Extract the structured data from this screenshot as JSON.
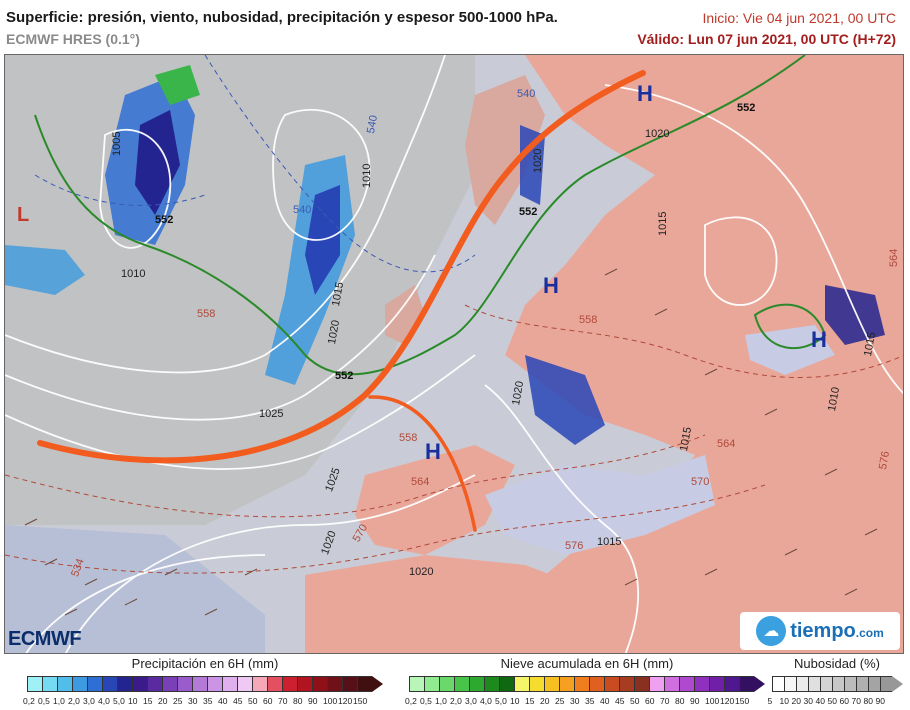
{
  "header": {
    "title": "Superficie: presión, viento, nubosidad, precipitación y espesor 500-1000 hPa.",
    "model": "ECMWF HRES (0.1°)",
    "init": "Inicio: Vie 04 jun 2021, 00 UTC",
    "valid": "Válido: Lun 07 jun 2021, 00 UTC (H+72)"
  },
  "map": {
    "pressure_centers": [
      {
        "label": "H",
        "color": "#1a2f9e"
      },
      {
        "label": "H",
        "color": "#1a2f9e"
      },
      {
        "label": "H",
        "color": "#1a2f9e"
      },
      {
        "label": "H",
        "color": "#1a2f9e"
      },
      {
        "label": "L",
        "color": "#c0392b"
      }
    ],
    "isobar_labels": [
      "1005",
      "1010",
      "1010",
      "1015",
      "1020",
      "1025",
      "1025",
      "1020",
      "1020",
      "1020",
      "1015",
      "1015",
      "1020",
      "1015",
      "1020",
      "1010",
      "1015"
    ],
    "thickness_labels": [
      "552",
      "552",
      "552",
      "552",
      "540",
      "540",
      "540",
      "558",
      "558",
      "558",
      "564",
      "564",
      "570",
      "570",
      "576",
      "576",
      "534",
      "564"
    ]
  },
  "legends": {
    "precipitation": {
      "title": "Precipitación en 6H (mm)",
      "ticks": [
        "0,2",
        "0,5",
        "1,0",
        "2,0",
        "3,0",
        "4,0",
        "5,0",
        "10",
        "15",
        "20",
        "25",
        "30",
        "35",
        "40",
        "45",
        "50",
        "60",
        "70",
        "80",
        "90",
        "100",
        "120",
        "150"
      ],
      "colors": [
        "#9ff0f7",
        "#74dbf3",
        "#53bde9",
        "#3d9ae0",
        "#2f6ed4",
        "#2946b7",
        "#23248f",
        "#3b1a8a",
        "#5a2aa0",
        "#7a40b8",
        "#9a5ccc",
        "#b47ad8",
        "#cc94e4",
        "#e0b0ee",
        "#f0c8f4",
        "#f6a8b8",
        "#e45060",
        "#cc2030",
        "#b01420",
        "#901018",
        "#701018",
        "#581018",
        "#401010"
      ]
    },
    "snow": {
      "title": "Nieve acumulada en 6H (mm)",
      "ticks": [
        "0,2",
        "0,5",
        "1,0",
        "2,0",
        "3,0",
        "4,0",
        "5,0",
        "10",
        "15",
        "20",
        "25",
        "30",
        "35",
        "40",
        "45",
        "50",
        "60",
        "70",
        "80",
        "90",
        "100",
        "120",
        "150"
      ],
      "colors": [
        "#b8f5b8",
        "#90ea90",
        "#6ad86a",
        "#48c448",
        "#2ea82e",
        "#1e8a1e",
        "#106810",
        "#f5f56a",
        "#f5dd30",
        "#f5c020",
        "#f5a020",
        "#f07e1e",
        "#e06020",
        "#c84c20",
        "#a83c20",
        "#8a3020",
        "#f0a0f0",
        "#d070e0",
        "#b048d0",
        "#9030c0",
        "#7020a8",
        "#501890",
        "#341060"
      ]
    },
    "cloud": {
      "title": "Nubosidad (%)",
      "ticks": [
        "5",
        "10",
        "20",
        "30",
        "40",
        "50",
        "60",
        "70",
        "80",
        "90"
      ],
      "colors": [
        "#ffffff",
        "#f6f6f6",
        "#ececec",
        "#e0e0e0",
        "#d4d4d4",
        "#c8c8c8",
        "#bcbcbc",
        "#b0b0b0",
        "#a4a4a4",
        "#989898"
      ]
    }
  },
  "logos": {
    "ecmwf": "ECMWF",
    "tiempo_main": "tiempo",
    "tiempo_tld": ".com"
  }
}
